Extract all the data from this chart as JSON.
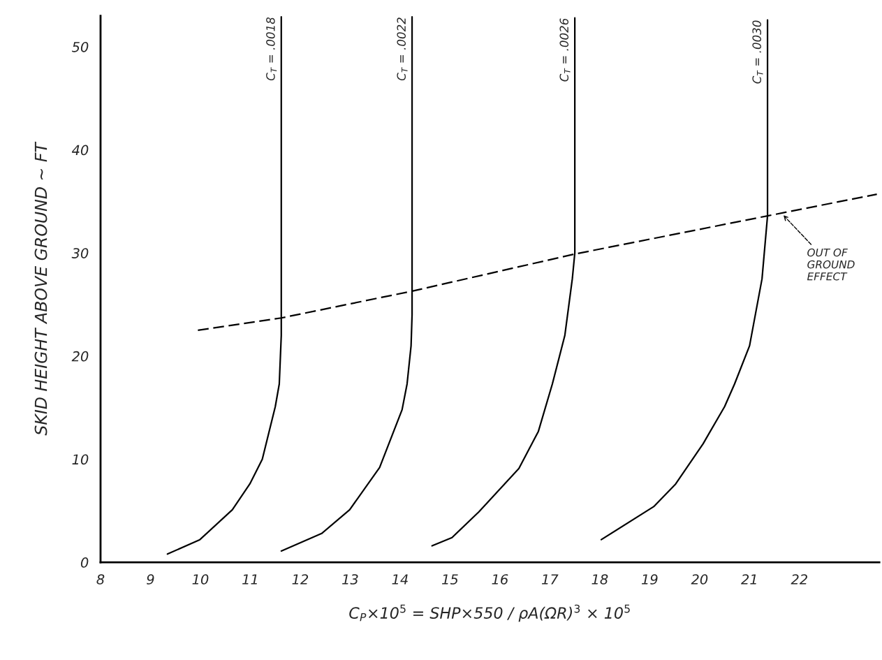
{
  "chart_data": {
    "type": "line",
    "xlabel": "C$_{P}$×10$^{5}$ = SHP×550 / ρA(ΩR)$^{3}$ × 10$^{5}$",
    "ylabel": "SKID HEIGHT ABOVE GROUND ~ FT",
    "xlim": [
      8,
      23.6
    ],
    "ylim": [
      0,
      53
    ],
    "xticks": [
      8,
      9,
      10,
      11,
      12,
      13,
      14,
      15,
      16,
      17,
      18,
      19,
      20,
      21,
      22
    ],
    "yticks": [
      0,
      10,
      20,
      30,
      40,
      50
    ],
    "grid": false,
    "legend": false,
    "marker": "none",
    "series": [
      {
        "name": "C$_{T}$ = .0018",
        "color": "#000000",
        "line_style": "solid",
        "x": [
          9.34,
          9.99,
          10.64,
          10.99,
          11.24,
          11.5,
          11.58,
          11.62,
          11.62
        ],
        "values": [
          0.8,
          2.2,
          5.1,
          7.6,
          10.0,
          15.1,
          17.3,
          22,
          52.9
        ]
      },
      {
        "name": "C$_{T}$ = .0022",
        "color": "#000000",
        "line_style": "solid",
        "x": [
          11.62,
          12.43,
          12.99,
          13.59,
          14.04,
          14.14,
          14.22,
          14.24,
          14.24
        ],
        "values": [
          1.1,
          2.8,
          5.1,
          9.2,
          14.8,
          17.3,
          21,
          24,
          52.9
        ]
      },
      {
        "name": "C$_{T}$ = .0026",
        "color": "#000000",
        "line_style": "solid",
        "x": [
          14.64,
          15.04,
          15.58,
          16.38,
          16.77,
          17.05,
          17.3,
          17.45,
          17.5,
          17.5
        ],
        "values": [
          1.6,
          2.4,
          4.9,
          9.1,
          12.7,
          17.3,
          22,
          27.5,
          30,
          52.8
        ]
      },
      {
        "name": "C$_{T}$ = .0030",
        "color": "#000000",
        "line_style": "solid",
        "x": [
          18.03,
          19.08,
          19.52,
          20.07,
          20.5,
          20.7,
          21.0,
          21.25,
          21.36,
          21.36
        ],
        "values": [
          2.2,
          5.4,
          7.6,
          11.5,
          15.1,
          17.3,
          21,
          27.5,
          33.6,
          52.6
        ]
      },
      {
        "color": "#000000",
        "line_style": "dashed",
        "x": [
          9.95,
          11.62,
          14.24,
          17.5,
          21.36,
          23.55
        ],
        "values": [
          22.5,
          23.7,
          26.3,
          29.9,
          33.6,
          35.7
        ]
      }
    ],
    "annotations": [
      {
        "text": "OUT OF\nGROUND\nEFFECT",
        "x": 21.65,
        "y": 33.8
      }
    ]
  }
}
